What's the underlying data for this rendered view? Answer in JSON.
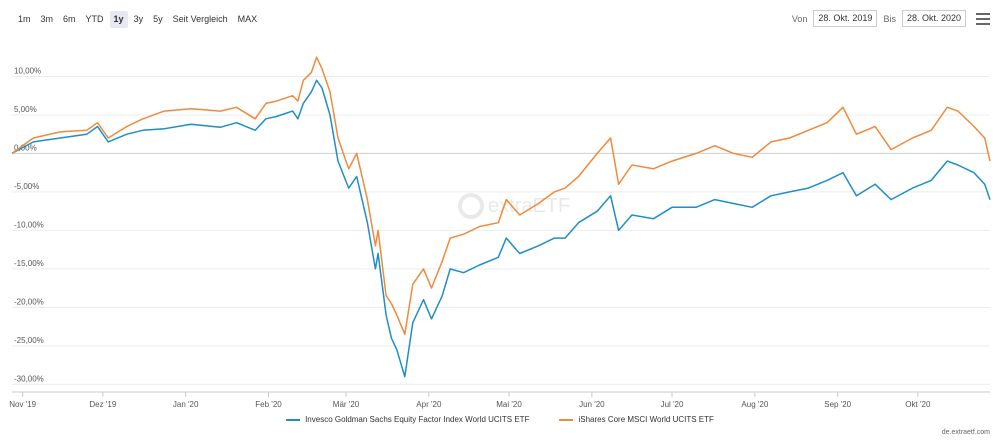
{
  "toolbar": {
    "ranges": [
      {
        "label": "1m",
        "active": false
      },
      {
        "label": "3m",
        "active": false
      },
      {
        "label": "6m",
        "active": false
      },
      {
        "label": "YTD",
        "active": false
      },
      {
        "label": "1y",
        "active": true
      },
      {
        "label": "3y",
        "active": false
      },
      {
        "label": "5y",
        "active": false
      },
      {
        "label": "Seit Vergleich",
        "active": false
      },
      {
        "label": "MAX",
        "active": false
      }
    ],
    "from_label": "Von",
    "from_value": "28. Okt. 2019",
    "to_label": "Bis",
    "to_value": "28. Okt. 2020",
    "menu_icon": "hamburger-menu-icon"
  },
  "watermark": "extraETF",
  "credit": "de.extraetf.com",
  "chart_data": {
    "type": "line",
    "x_ticks": [
      "Nov '19",
      "Dez '19",
      "Jan '20",
      "Feb '20",
      "Mär '20",
      "Apr '20",
      "Mai '20",
      "Jun '20",
      "Jul '20",
      "Aug '20",
      "Sep '20",
      "Okt '20"
    ],
    "y_ticks": [
      "10,00%",
      "5,00%",
      "0,00%",
      "-5,00%",
      "-10,00%",
      "-15,00%",
      "-20,00%",
      "-25,00%",
      "-30,00%"
    ],
    "y_tick_values": [
      10,
      5,
      0,
      -5,
      -10,
      -15,
      -20,
      -25,
      -30
    ],
    "ylim": [
      -31,
      15
    ],
    "xlim": [
      "2019-10-28",
      "2020-10-28"
    ],
    "zero_line": true,
    "legend_position": "bottom",
    "series": [
      {
        "name": "Invesco Goldman Sachs Equity Factor Index World UCITS ETF",
        "color": "#1f8ec7",
        "points": [
          [
            "2019-10-28",
            0.0
          ],
          [
            "2019-11-05",
            1.5
          ],
          [
            "2019-11-15",
            2.0
          ],
          [
            "2019-11-25",
            2.5
          ],
          [
            "2019-11-29",
            3.5
          ],
          [
            "2019-12-03",
            1.5
          ],
          [
            "2019-12-10",
            2.5
          ],
          [
            "2019-12-16",
            3.0
          ],
          [
            "2019-12-24",
            3.2
          ],
          [
            "2020-01-03",
            3.8
          ],
          [
            "2020-01-14",
            3.4
          ],
          [
            "2020-01-20",
            4.0
          ],
          [
            "2020-01-27",
            3.0
          ],
          [
            "2020-01-31",
            4.5
          ],
          [
            "2020-02-04",
            4.8
          ],
          [
            "2020-02-10",
            5.5
          ],
          [
            "2020-02-12",
            4.5
          ],
          [
            "2020-02-14",
            6.5
          ],
          [
            "2020-02-17",
            8.0
          ],
          [
            "2020-02-19",
            9.5
          ],
          [
            "2020-02-21",
            8.5
          ],
          [
            "2020-02-24",
            5.0
          ],
          [
            "2020-02-27",
            -1.0
          ],
          [
            "2020-03-02",
            -4.5
          ],
          [
            "2020-03-05",
            -3.0
          ],
          [
            "2020-03-09",
            -9.0
          ],
          [
            "2020-03-12",
            -15.0
          ],
          [
            "2020-03-13",
            -13.0
          ],
          [
            "2020-03-16",
            -21.0
          ],
          [
            "2020-03-18",
            -24.0
          ],
          [
            "2020-03-20",
            -25.5
          ],
          [
            "2020-03-23",
            -29.0
          ],
          [
            "2020-03-26",
            -22.0
          ],
          [
            "2020-03-30",
            -19.0
          ],
          [
            "2020-04-02",
            -21.5
          ],
          [
            "2020-04-06",
            -18.5
          ],
          [
            "2020-04-09",
            -15.0
          ],
          [
            "2020-04-14",
            -15.5
          ],
          [
            "2020-04-20",
            -14.5
          ],
          [
            "2020-04-27",
            -13.5
          ],
          [
            "2020-04-30",
            -11.0
          ],
          [
            "2020-05-05",
            -13.0
          ],
          [
            "2020-05-12",
            -12.0
          ],
          [
            "2020-05-18",
            -11.0
          ],
          [
            "2020-05-22",
            -11.0
          ],
          [
            "2020-05-27",
            -9.0
          ],
          [
            "2020-06-03",
            -7.5
          ],
          [
            "2020-06-08",
            -5.5
          ],
          [
            "2020-06-11",
            -10.0
          ],
          [
            "2020-06-16",
            -8.0
          ],
          [
            "2020-06-24",
            -8.5
          ],
          [
            "2020-07-01",
            -7.0
          ],
          [
            "2020-07-10",
            -7.0
          ],
          [
            "2020-07-17",
            -6.0
          ],
          [
            "2020-07-24",
            -6.5
          ],
          [
            "2020-07-31",
            -7.0
          ],
          [
            "2020-08-07",
            -5.5
          ],
          [
            "2020-08-14",
            -5.0
          ],
          [
            "2020-08-21",
            -4.5
          ],
          [
            "2020-08-28",
            -3.5
          ],
          [
            "2020-09-03",
            -2.5
          ],
          [
            "2020-09-08",
            -5.5
          ],
          [
            "2020-09-15",
            -4.0
          ],
          [
            "2020-09-21",
            -6.0
          ],
          [
            "2020-09-29",
            -4.5
          ],
          [
            "2020-10-06",
            -3.5
          ],
          [
            "2020-10-12",
            -1.0
          ],
          [
            "2020-10-16",
            -1.5
          ],
          [
            "2020-10-22",
            -2.5
          ],
          [
            "2020-10-26",
            -4.0
          ],
          [
            "2020-10-28",
            -6.0
          ]
        ]
      },
      {
        "name": "iShares Core MSCI World UCITS ETF",
        "color": "#f08a3c",
        "points": [
          [
            "2019-10-28",
            0.0
          ],
          [
            "2019-11-05",
            2.0
          ],
          [
            "2019-11-15",
            2.8
          ],
          [
            "2019-11-25",
            3.0
          ],
          [
            "2019-11-29",
            4.0
          ],
          [
            "2019-12-03",
            2.0
          ],
          [
            "2019-12-10",
            3.5
          ],
          [
            "2019-12-16",
            4.5
          ],
          [
            "2019-12-24",
            5.5
          ],
          [
            "2020-01-03",
            5.8
          ],
          [
            "2020-01-14",
            5.5
          ],
          [
            "2020-01-20",
            6.0
          ],
          [
            "2020-01-27",
            4.5
          ],
          [
            "2020-01-31",
            6.5
          ],
          [
            "2020-02-04",
            6.8
          ],
          [
            "2020-02-10",
            7.5
          ],
          [
            "2020-02-12",
            6.8
          ],
          [
            "2020-02-14",
            9.5
          ],
          [
            "2020-02-17",
            10.5
          ],
          [
            "2020-02-19",
            12.5
          ],
          [
            "2020-02-21",
            11.0
          ],
          [
            "2020-02-24",
            8.0
          ],
          [
            "2020-02-27",
            2.0
          ],
          [
            "2020-03-02",
            -2.0
          ],
          [
            "2020-03-05",
            0.0
          ],
          [
            "2020-03-09",
            -6.0
          ],
          [
            "2020-03-12",
            -12.0
          ],
          [
            "2020-03-13",
            -10.0
          ],
          [
            "2020-03-16",
            -18.5
          ],
          [
            "2020-03-18",
            -19.5
          ],
          [
            "2020-03-20",
            -21.0
          ],
          [
            "2020-03-23",
            -23.5
          ],
          [
            "2020-03-26",
            -17.0
          ],
          [
            "2020-03-30",
            -15.0
          ],
          [
            "2020-04-02",
            -17.5
          ],
          [
            "2020-04-06",
            -14.0
          ],
          [
            "2020-04-09",
            -11.0
          ],
          [
            "2020-04-14",
            -10.5
          ],
          [
            "2020-04-20",
            -9.5
          ],
          [
            "2020-04-27",
            -9.0
          ],
          [
            "2020-04-30",
            -6.0
          ],
          [
            "2020-05-05",
            -8.0
          ],
          [
            "2020-05-12",
            -6.5
          ],
          [
            "2020-05-18",
            -5.0
          ],
          [
            "2020-05-22",
            -4.5
          ],
          [
            "2020-05-27",
            -3.0
          ],
          [
            "2020-06-03",
            0.0
          ],
          [
            "2020-06-08",
            2.0
          ],
          [
            "2020-06-11",
            -4.0
          ],
          [
            "2020-06-16",
            -1.5
          ],
          [
            "2020-06-24",
            -2.0
          ],
          [
            "2020-07-01",
            -1.0
          ],
          [
            "2020-07-10",
            0.0
          ],
          [
            "2020-07-17",
            1.0
          ],
          [
            "2020-07-24",
            0.0
          ],
          [
            "2020-07-31",
            -0.5
          ],
          [
            "2020-08-07",
            1.5
          ],
          [
            "2020-08-14",
            2.0
          ],
          [
            "2020-08-21",
            3.0
          ],
          [
            "2020-08-28",
            4.0
          ],
          [
            "2020-09-03",
            6.0
          ],
          [
            "2020-09-08",
            2.5
          ],
          [
            "2020-09-15",
            3.5
          ],
          [
            "2020-09-21",
            0.5
          ],
          [
            "2020-09-29",
            2.0
          ],
          [
            "2020-10-06",
            3.0
          ],
          [
            "2020-10-12",
            6.0
          ],
          [
            "2020-10-16",
            5.5
          ],
          [
            "2020-10-22",
            3.5
          ],
          [
            "2020-10-26",
            2.0
          ],
          [
            "2020-10-28",
            -1.0
          ]
        ]
      }
    ]
  }
}
